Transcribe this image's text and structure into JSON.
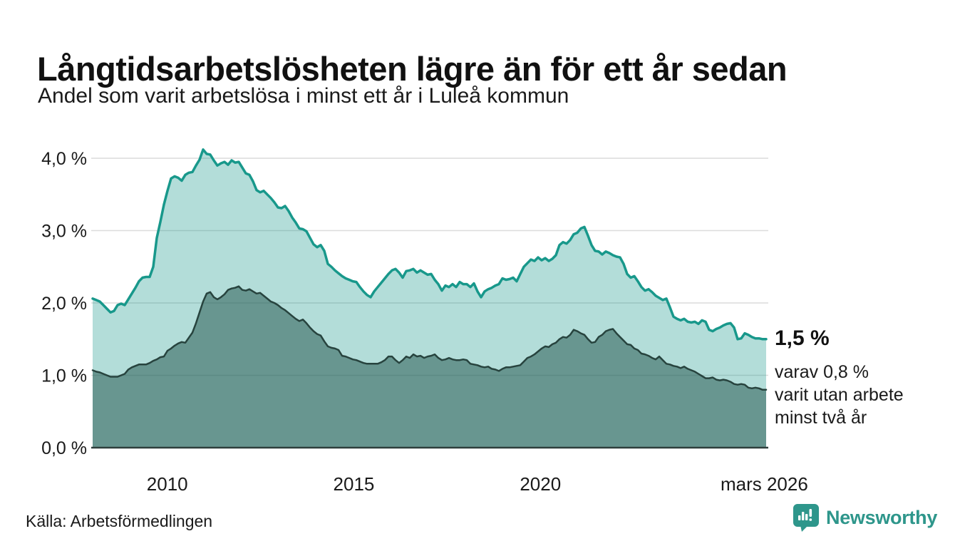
{
  "header": {
    "title": "Långtidsarbetslösheten lägre än för ett år sedan",
    "subtitle": "Andel som varit arbetslösa i minst ett år i Luleå kommun"
  },
  "annotation": {
    "value": "1,5 %",
    "note_line1": "varav 0,8 %",
    "note_line2": "varit utan arbete",
    "note_line3": "minst två år"
  },
  "footer": {
    "source": "Källa: Arbetsförmedlingen",
    "brand": "Newsworthy"
  },
  "colors": {
    "accent_teal": "#18988b",
    "dark_slate": "#27433e",
    "gridline": "#dcdcdc",
    "baseline": "#2e3f3c",
    "brand": "#2e968b",
    "text": "#1a1a1a"
  },
  "chart_data": {
    "type": "area",
    "title": "Långtidsarbetslösheten lägre än för ett år sedan",
    "subtitle": "Andel som varit arbetslösa i minst ett år i Luleå kommun",
    "x_start": 2008.2,
    "x_end": 2026.25,
    "ylim": [
      0,
      4.3
    ],
    "grid": "horizontal",
    "legend_position": "none",
    "y_ticks": [
      {
        "value": 0,
        "label": "0,0 %"
      },
      {
        "value": 1,
        "label": "1,0 %"
      },
      {
        "value": 2,
        "label": "2,0 %"
      },
      {
        "value": 3,
        "label": "3,0 %"
      },
      {
        "value": 4,
        "label": "4,0 %"
      }
    ],
    "x_ticks": [
      {
        "year": 2010.2,
        "label": "2010"
      },
      {
        "year": 2015.2,
        "label": "2015"
      },
      {
        "year": 2020.2,
        "label": "2020"
      },
      {
        "year": 2026.2,
        "label": "mars 2026"
      }
    ],
    "series": [
      {
        "name": "Andel som varit arbetslösa minst ett år",
        "end_label": "1,5 %",
        "end_value": 1.5,
        "line_color": "#18988b",
        "fill_color": "rgba(24,152,139,0.33)",
        "line_width": 3.5,
        "values": [
          2.06,
          2.04,
          2.02,
          1.97,
          1.92,
          1.87,
          1.89,
          1.97,
          1.99,
          1.97,
          2.05,
          2.13,
          2.21,
          2.3,
          2.35,
          2.36,
          2.36,
          2.5,
          2.9,
          3.12,
          3.36,
          3.55,
          3.72,
          3.75,
          3.73,
          3.69,
          3.77,
          3.8,
          3.81,
          3.9,
          3.98,
          4.12,
          4.06,
          4.05,
          3.97,
          3.9,
          3.93,
          3.95,
          3.91,
          3.97,
          3.94,
          3.95,
          3.87,
          3.79,
          3.77,
          3.68,
          3.56,
          3.53,
          3.55,
          3.5,
          3.45,
          3.39,
          3.32,
          3.31,
          3.34,
          3.27,
          3.18,
          3.11,
          3.03,
          3.02,
          2.99,
          2.9,
          2.81,
          2.77,
          2.8,
          2.72,
          2.54,
          2.5,
          2.45,
          2.41,
          2.37,
          2.34,
          2.32,
          2.3,
          2.29,
          2.22,
          2.16,
          2.11,
          2.08,
          2.16,
          2.22,
          2.28,
          2.34,
          2.4,
          2.45,
          2.47,
          2.42,
          2.35,
          2.44,
          2.45,
          2.47,
          2.42,
          2.45,
          2.42,
          2.39,
          2.4,
          2.32,
          2.26,
          2.17,
          2.24,
          2.22,
          2.26,
          2.22,
          2.29,
          2.26,
          2.26,
          2.22,
          2.27,
          2.16,
          2.08,
          2.16,
          2.19,
          2.21,
          2.24,
          2.26,
          2.34,
          2.32,
          2.33,
          2.35,
          2.3,
          2.4,
          2.5,
          2.55,
          2.6,
          2.58,
          2.63,
          2.59,
          2.62,
          2.58,
          2.61,
          2.66,
          2.8,
          2.84,
          2.82,
          2.87,
          2.95,
          2.97,
          3.03,
          3.05,
          2.93,
          2.8,
          2.72,
          2.71,
          2.67,
          2.71,
          2.69,
          2.66,
          2.64,
          2.63,
          2.54,
          2.4,
          2.35,
          2.37,
          2.3,
          2.22,
          2.17,
          2.19,
          2.15,
          2.1,
          2.07,
          2.04,
          2.06,
          1.94,
          1.81,
          1.78,
          1.76,
          1.78,
          1.74,
          1.73,
          1.74,
          1.71,
          1.76,
          1.74,
          1.63,
          1.61,
          1.64,
          1.66,
          1.69,
          1.71,
          1.72,
          1.66,
          1.5,
          1.51,
          1.58,
          1.56,
          1.53,
          1.51,
          1.51,
          1.5,
          1.5
        ]
      },
      {
        "name": "varav varit utan arbete minst två år",
        "end_label": "0,8 %",
        "end_value": 0.8,
        "line_color": "#27433e",
        "fill_color": "rgba(35,85,76,0.52)",
        "line_width": 2.5,
        "values": [
          1.07,
          1.05,
          1.04,
          1.02,
          1.0,
          0.98,
          0.98,
          0.98,
          1.0,
          1.02,
          1.08,
          1.11,
          1.13,
          1.15,
          1.15,
          1.15,
          1.17,
          1.2,
          1.22,
          1.25,
          1.26,
          1.34,
          1.37,
          1.41,
          1.44,
          1.46,
          1.45,
          1.52,
          1.59,
          1.72,
          1.87,
          2.02,
          2.13,
          2.15,
          2.08,
          2.05,
          2.08,
          2.12,
          2.18,
          2.2,
          2.21,
          2.23,
          2.18,
          2.17,
          2.19,
          2.16,
          2.13,
          2.14,
          2.1,
          2.06,
          2.02,
          2.0,
          1.97,
          1.93,
          1.9,
          1.86,
          1.82,
          1.78,
          1.75,
          1.77,
          1.72,
          1.66,
          1.61,
          1.57,
          1.55,
          1.47,
          1.4,
          1.38,
          1.37,
          1.35,
          1.27,
          1.26,
          1.24,
          1.22,
          1.21,
          1.19,
          1.17,
          1.16,
          1.16,
          1.16,
          1.16,
          1.18,
          1.21,
          1.26,
          1.26,
          1.21,
          1.17,
          1.21,
          1.26,
          1.24,
          1.29,
          1.26,
          1.27,
          1.24,
          1.26,
          1.27,
          1.29,
          1.24,
          1.21,
          1.22,
          1.24,
          1.22,
          1.21,
          1.21,
          1.22,
          1.21,
          1.16,
          1.15,
          1.14,
          1.12,
          1.11,
          1.12,
          1.09,
          1.08,
          1.06,
          1.09,
          1.11,
          1.11,
          1.12,
          1.13,
          1.14,
          1.19,
          1.24,
          1.26,
          1.29,
          1.33,
          1.37,
          1.4,
          1.39,
          1.43,
          1.45,
          1.5,
          1.53,
          1.52,
          1.56,
          1.63,
          1.61,
          1.58,
          1.56,
          1.5,
          1.45,
          1.46,
          1.53,
          1.56,
          1.61,
          1.63,
          1.64,
          1.58,
          1.53,
          1.48,
          1.43,
          1.42,
          1.37,
          1.35,
          1.3,
          1.29,
          1.27,
          1.24,
          1.22,
          1.26,
          1.21,
          1.16,
          1.15,
          1.13,
          1.12,
          1.1,
          1.12,
          1.09,
          1.07,
          1.05,
          1.02,
          0.99,
          0.96,
          0.96,
          0.97,
          0.94,
          0.93,
          0.94,
          0.93,
          0.91,
          0.88,
          0.87,
          0.88,
          0.87,
          0.83,
          0.82,
          0.83,
          0.82,
          0.8,
          0.8
        ]
      }
    ]
  }
}
